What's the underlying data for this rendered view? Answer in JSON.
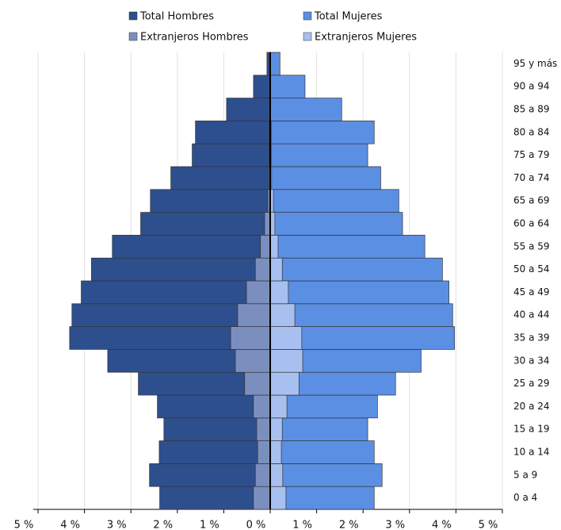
{
  "chart_data": {
    "type": "pyramid",
    "categories": [
      "0 a 4",
      "5 a 9",
      "10 a 14",
      "15 a 19",
      "20 a 24",
      "25 a 29",
      "30 a 34",
      "35 a 39",
      "40 a 44",
      "45 a 49",
      "50 a 54",
      "55 a 59",
      "60 a 64",
      "65 a 69",
      "70 a 74",
      "75 a 79",
      "80 a 84",
      "85 a 89",
      "90 a 94",
      "95 y más"
    ],
    "series": [
      {
        "name": "Total Hombres",
        "color": "#2e4f8e",
        "values": [
          -2.38,
          -2.6,
          -2.39,
          -2.29,
          -2.43,
          -2.84,
          -3.5,
          -4.32,
          -4.27,
          -4.07,
          -3.85,
          -3.4,
          -2.79,
          -2.58,
          -2.14,
          -1.68,
          -1.61,
          -0.94,
          -0.36,
          -0.07
        ]
      },
      {
        "name": "Total Mujeres",
        "color": "#5b8fe3",
        "values": [
          2.24,
          2.41,
          2.24,
          2.1,
          2.31,
          2.7,
          3.25,
          3.97,
          3.93,
          3.85,
          3.71,
          3.33,
          2.85,
          2.77,
          2.38,
          2.1,
          2.24,
          1.54,
          0.75,
          0.21
        ]
      },
      {
        "name": "Extranjeros Hombres",
        "color": "#7b8fbf",
        "values": [
          -0.36,
          -0.32,
          -0.27,
          -0.29,
          -0.36,
          -0.55,
          -0.75,
          -0.85,
          -0.7,
          -0.51,
          -0.32,
          -0.21,
          -0.12,
          -0.05,
          -0.03,
          -0.02,
          -0.02,
          -0.01,
          -0.01,
          -0.01
        ]
      },
      {
        "name": "Extranjeros Mujeres",
        "color": "#a8c0f0",
        "values": [
          0.34,
          0.27,
          0.24,
          0.26,
          0.36,
          0.62,
          0.7,
          0.68,
          0.53,
          0.39,
          0.26,
          0.17,
          0.1,
          0.07,
          0.03,
          0.02,
          0.02,
          0.01,
          0.01,
          0.01
        ]
      }
    ],
    "xlim": [
      -5,
      5
    ],
    "xticks": [
      {
        "value": -5,
        "label": "5 %"
      },
      {
        "value": -4,
        "label": "4 %"
      },
      {
        "value": -3,
        "label": "3 %"
      },
      {
        "value": -2,
        "label": "2 %"
      },
      {
        "value": -1,
        "label": "1 %"
      },
      {
        "value": 0,
        "label": "0 %"
      },
      {
        "value": 1,
        "label": "1 %"
      },
      {
        "value": 2,
        "label": "2 %"
      },
      {
        "value": 3,
        "label": "3 %"
      },
      {
        "value": 4,
        "label": "4 %"
      },
      {
        "value": 5,
        "label": "5 %"
      }
    ],
    "grid": true
  }
}
